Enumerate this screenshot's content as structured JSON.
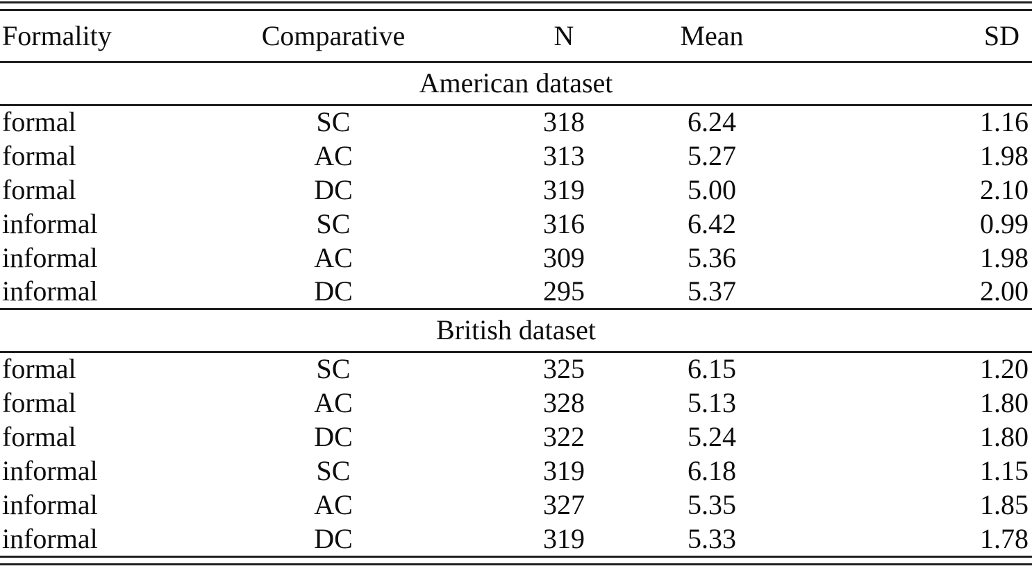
{
  "table": {
    "columns": {
      "formality": "Formality",
      "comparative": "Comparative",
      "n": "N",
      "mean": "Mean",
      "sd": "SD"
    },
    "sections": [
      {
        "label": "American dataset",
        "rows": [
          [
            "formal",
            "SC",
            "318",
            "6.24",
            "1.16"
          ],
          [
            "formal",
            "AC",
            "313",
            "5.27",
            "1.98"
          ],
          [
            "formal",
            "DC",
            "319",
            "5.00",
            "2.10"
          ],
          [
            "informal",
            "SC",
            "316",
            "6.42",
            "0.99"
          ],
          [
            "informal",
            "AC",
            "309",
            "5.36",
            "1.98"
          ],
          [
            "informal",
            "DC",
            "295",
            "5.37",
            "2.00"
          ]
        ]
      },
      {
        "label": "British dataset",
        "rows": [
          [
            "formal",
            "SC",
            "325",
            "6.15",
            "1.20"
          ],
          [
            "formal",
            "AC",
            "328",
            "5.13",
            "1.80"
          ],
          [
            "formal",
            "DC",
            "322",
            "5.24",
            "1.80"
          ],
          [
            "informal",
            "SC",
            "319",
            "6.18",
            "1.15"
          ],
          [
            "informal",
            "AC",
            "327",
            "5.35",
            "1.85"
          ],
          [
            "informal",
            "DC",
            "319",
            "5.33",
            "1.78"
          ]
        ]
      }
    ]
  }
}
